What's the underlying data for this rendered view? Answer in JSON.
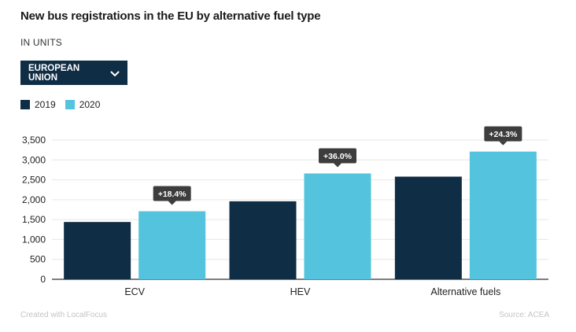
{
  "header": {
    "title": "New bus registrations in the EU by alternative fuel type",
    "subtitle": "IN UNITS"
  },
  "filter": {
    "selected": "EUROPEAN UNION",
    "icon": "chevron-down-icon"
  },
  "footer": {
    "credit": "Created with LocalFocus",
    "source": "Source: ACEA"
  },
  "colors": {
    "series_2019": "#0f2d45",
    "series_2020": "#54c4de",
    "annotation_bg": "#3d3d3d",
    "axis": "#333333",
    "grid": "#e6e6e6"
  },
  "chart_data": {
    "type": "bar",
    "categories": [
      "ECV",
      "HEV",
      "Alternative fuels"
    ],
    "series": [
      {
        "name": "2019",
        "values": [
          1440,
          1960,
          2580
        ]
      },
      {
        "name": "2020",
        "values": [
          1710,
          2660,
          3210
        ]
      }
    ],
    "annotations": [
      "+18.4%",
      "+36.0%",
      "+24.3%"
    ],
    "yticks": [
      "0",
      "500",
      "1,000",
      "1,500",
      "2,000",
      "2,500",
      "3,000",
      "3,500"
    ],
    "ylim": [
      0,
      3500
    ],
    "grid": true,
    "legend": "top-left"
  }
}
